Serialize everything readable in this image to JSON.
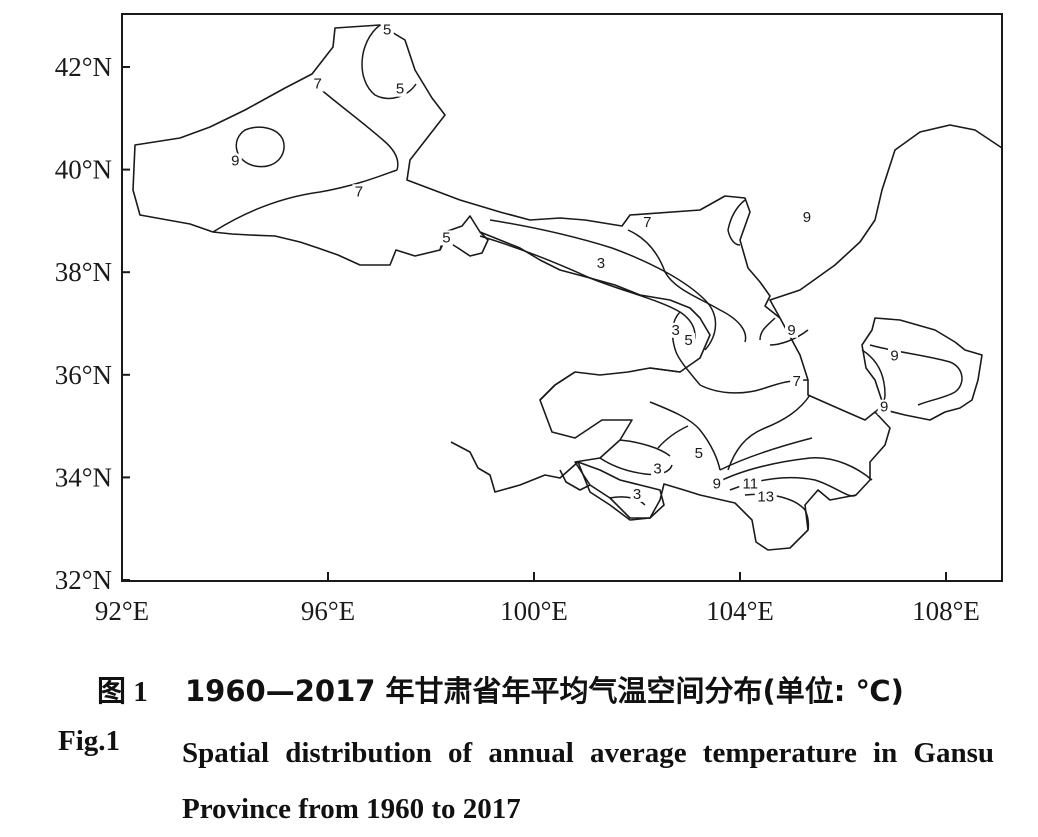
{
  "map": {
    "x_ticks": [
      "92°E",
      "96°E",
      "100°E",
      "104°E",
      "108°E"
    ],
    "y_ticks": [
      "32°N",
      "34°N",
      "36°N",
      "38°N",
      "40°N",
      "42°N"
    ],
    "contour_labels": [
      {
        "text": "5",
        "lon": 97.15,
        "lat": 42.65
      },
      {
        "text": "5",
        "lon": 97.4,
        "lat": 41.5
      },
      {
        "text": "7",
        "lon": 95.8,
        "lat": 41.6
      },
      {
        "text": "9",
        "lon": 94.2,
        "lat": 40.1
      },
      {
        "text": "7",
        "lon": 96.6,
        "lat": 39.5
      },
      {
        "text": "5",
        "lon": 98.3,
        "lat": 38.6
      },
      {
        "text": "7",
        "lon": 102.2,
        "lat": 38.9
      },
      {
        "text": "3",
        "lon": 101.3,
        "lat": 38.1
      },
      {
        "text": "9",
        "lon": 105.3,
        "lat": 39.0
      },
      {
        "text": "3",
        "lon": 102.75,
        "lat": 36.8
      },
      {
        "text": "5",
        "lon": 103.0,
        "lat": 36.6
      },
      {
        "text": "9",
        "lon": 105.0,
        "lat": 36.8
      },
      {
        "text": "7",
        "lon": 105.1,
        "lat": 35.8
      },
      {
        "text": "9",
        "lon": 107.0,
        "lat": 36.3
      },
      {
        "text": "9",
        "lon": 106.8,
        "lat": 35.3
      },
      {
        "text": "3",
        "lon": 102.4,
        "lat": 34.1
      },
      {
        "text": "5",
        "lon": 103.2,
        "lat": 34.4
      },
      {
        "text": "3",
        "lon": 102.0,
        "lat": 33.6
      },
      {
        "text": "9",
        "lon": 103.55,
        "lat": 33.8
      },
      {
        "text": "11",
        "lon": 104.2,
        "lat": 33.8
      },
      {
        "text": "13",
        "lon": 104.5,
        "lat": 33.55
      }
    ]
  },
  "caption": {
    "zh_fig": "图 1",
    "zh_text": "1960—2017 年甘肃省年平均气温空间分布(单位: ℃)",
    "en_fig": "Fig.1",
    "en_text": "Spatial distribution of annual average temperature in Gansu Province from 1960 to 2017"
  }
}
